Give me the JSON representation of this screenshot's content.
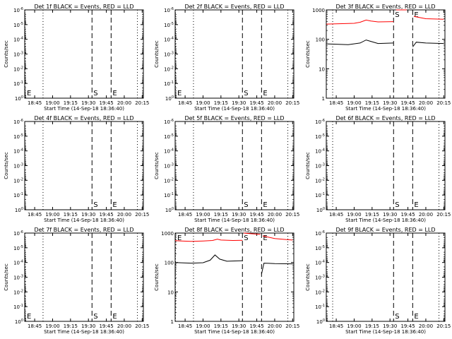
{
  "chart_data": [
    {
      "type": "line",
      "title": "Det 1f BLACK = Events, RED = LLD",
      "ylabel": "Counts/sec",
      "xlabel": "Start Time (14-Sep-18 18:36:40)",
      "xticks": [
        "18:45",
        "19:00",
        "19:15",
        "19:30",
        "19:45",
        "20:00",
        "20:15"
      ],
      "ylog": true,
      "ylim": [
        1,
        1e-06
      ],
      "yticks": [
        {
          "v": 1e-06,
          "label": "10^-6"
        },
        {
          "v": 1e-05,
          "label": "10^-5"
        },
        {
          "v": 0.0001,
          "label": "10^-4"
        },
        {
          "v": 0.001,
          "label": "10^-3"
        },
        {
          "v": 0.01,
          "label": "10^-2"
        },
        {
          "v": 0.1,
          "label": "10^-1"
        },
        {
          "v": 1,
          "label": "10^0"
        }
      ],
      "markers": [
        {
          "label": "E",
          "x": "18:36:40",
          "style": "dot"
        },
        {
          "label": "",
          "x": "18:52",
          "style": "dot"
        },
        {
          "label": "S",
          "x": "19:33",
          "style": "dash"
        },
        {
          "label": "E",
          "x": "19:49",
          "style": "dash"
        },
        {
          "label": "",
          "x": "20:11",
          "style": "dot"
        }
      ],
      "series": []
    },
    {
      "type": "line",
      "title": "Det 2f BLACK = Events, RED = LLD",
      "ylabel": "Counts/sec",
      "xlabel": "Start Time (14-Sep-18 18:36:40)",
      "xticks": [
        "18:45",
        "19:00",
        "19:15",
        "19:30",
        "19:45",
        "20:00",
        "20:15"
      ],
      "ylog": true,
      "ylim": [
        1,
        1e-06
      ],
      "yticks": [
        {
          "v": 1e-06,
          "label": "10^-6"
        },
        {
          "v": 1e-05,
          "label": "10^-5"
        },
        {
          "v": 0.0001,
          "label": "10^-4"
        },
        {
          "v": 0.001,
          "label": "10^-3"
        },
        {
          "v": 0.01,
          "label": "10^-2"
        },
        {
          "v": 0.1,
          "label": "10^-1"
        },
        {
          "v": 1,
          "label": "10^0"
        }
      ],
      "markers": [
        {
          "label": "E",
          "x": "18:36:40",
          "style": "dot"
        },
        {
          "label": "",
          "x": "18:52",
          "style": "dot"
        },
        {
          "label": "S",
          "x": "19:33",
          "style": "dash"
        },
        {
          "label": "E",
          "x": "19:49",
          "style": "dash"
        },
        {
          "label": "",
          "x": "20:11",
          "style": "dot"
        }
      ],
      "series": []
    },
    {
      "type": "line",
      "title": "Det 3f BLACK = Events, RED = LLD",
      "ylabel": "Counts/sec",
      "xlabel": "Start Time (14-Sep-18 18:36:40)",
      "xticks": [
        "18:45",
        "19:00",
        "19:15",
        "19:30",
        "19:45",
        "20:00",
        "20:15"
      ],
      "ylog": true,
      "ylim": [
        1,
        1000
      ],
      "yticks": [
        {
          "v": 1,
          "label": "1"
        },
        {
          "v": 10,
          "label": "10"
        },
        {
          "v": 100,
          "label": "100"
        },
        {
          "v": 1000,
          "label": "1000"
        }
      ],
      "markers": [
        {
          "label": "",
          "x": "18:42",
          "style": "dot"
        },
        {
          "label": "S",
          "x": "19:33",
          "style": "dash"
        },
        {
          "label": "E",
          "x": "19:49",
          "style": "dash"
        },
        {
          "label": "",
          "x": "20:11",
          "style": "dot"
        }
      ],
      "series": [
        {
          "name": "RED",
          "color": "#ff0000",
          "segments": [
            [
              [
                "18:36:40",
                330
              ],
              [
                "18:50",
                340
              ],
              [
                "19:00",
                350
              ],
              [
                "19:05",
                380
              ],
              [
                "19:10",
                450
              ],
              [
                "19:14",
                420
              ],
              [
                "19:20",
                390
              ],
              [
                "19:33",
                400
              ]
            ],
            [
              [
                "19:35",
                1050
              ],
              [
                "19:44",
                1000
              ]
            ],
            [
              "__gap__"
            ],
            [
              [
                "19:50",
                600
              ],
              [
                "20:00",
                500
              ],
              [
                "20:15",
                480
              ]
            ]
          ]
        },
        {
          "name": "BLACK",
          "color": "#000000",
          "segments": [
            [
              [
                "18:36:40",
                70
              ],
              [
                "18:45",
                68
              ],
              [
                "18:55",
                66
              ],
              [
                "19:05",
                75
              ],
              [
                "19:10",
                95
              ],
              [
                "19:14",
                85
              ],
              [
                "19:20",
                72
              ],
              [
                "19:33",
                75
              ]
            ],
            [
              [
                "19:49",
                55
              ],
              [
                "19:52",
                80
              ],
              [
                "20:00",
                75
              ],
              [
                "20:15",
                72
              ]
            ]
          ]
        }
      ]
    },
    {
      "type": "line",
      "title": "Det 4f BLACK = Events, RED = LLD",
      "ylabel": "Counts/sec",
      "xlabel": "Start Time (14-Sep-18 18:36:40)",
      "xticks": [
        "18:45",
        "19:00",
        "19:15",
        "19:30",
        "19:45",
        "20:00",
        "20:15"
      ],
      "ylog": true,
      "ylim": [
        1,
        1e-06
      ],
      "yticks": [
        {
          "v": 1e-06,
          "label": "10^-6"
        },
        {
          "v": 1e-05,
          "label": "10^-5"
        },
        {
          "v": 0.0001,
          "label": "10^-4"
        },
        {
          "v": 0.001,
          "label": "10^-3"
        },
        {
          "v": 0.01,
          "label": "10^-2"
        },
        {
          "v": 0.1,
          "label": "10^-1"
        },
        {
          "v": 1,
          "label": "10^0"
        }
      ],
      "markers": [
        {
          "label": "",
          "x": "18:52",
          "style": "dot"
        },
        {
          "label": "S",
          "x": "19:33",
          "style": "dash"
        },
        {
          "label": "E",
          "x": "19:49",
          "style": "dash"
        },
        {
          "label": "",
          "x": "20:11",
          "style": "dot"
        }
      ],
      "series": []
    },
    {
      "type": "line",
      "title": "Det 5f BLACK = Events, RED = LLD",
      "ylabel": "Counts/sec",
      "xlabel": "Start Time (14-Sep-18 18:36:40)",
      "xticks": [
        "18:45",
        "19:00",
        "19:15",
        "19:30",
        "19:45",
        "20:00",
        "20:15"
      ],
      "ylog": true,
      "ylim": [
        1,
        1e-06
      ],
      "yticks": [
        {
          "v": 1e-06,
          "label": "10^-6"
        },
        {
          "v": 1e-05,
          "label": "10^-5"
        },
        {
          "v": 0.0001,
          "label": "10^-4"
        },
        {
          "v": 0.001,
          "label": "10^-3"
        },
        {
          "v": 0.01,
          "label": "10^-2"
        },
        {
          "v": 0.1,
          "label": "10^-1"
        },
        {
          "v": 1,
          "label": "10^0"
        }
      ],
      "markers": [
        {
          "label": "",
          "x": "18:52",
          "style": "dot"
        },
        {
          "label": "S",
          "x": "19:33",
          "style": "dash"
        },
        {
          "label": "E",
          "x": "19:49",
          "style": "dash"
        },
        {
          "label": "",
          "x": "20:11",
          "style": "dot"
        }
      ],
      "series": []
    },
    {
      "type": "line",
      "title": "Det 6f BLACK = Events, RED = LLD",
      "ylabel": "Counts/sec",
      "xlabel": "Start Time (14-Sep-18 18:36:40)",
      "xticks": [
        "18:45",
        "19:00",
        "19:15",
        "19:30",
        "19:45",
        "20:00",
        "20:15"
      ],
      "ylog": true,
      "ylim": [
        1,
        1e-06
      ],
      "yticks": [
        {
          "v": 1e-06,
          "label": "10^-6"
        },
        {
          "v": 1e-05,
          "label": "10^-5"
        },
        {
          "v": 0.0001,
          "label": "10^-4"
        },
        {
          "v": 0.001,
          "label": "10^-3"
        },
        {
          "v": 0.01,
          "label": "10^-2"
        },
        {
          "v": 0.1,
          "label": "10^-1"
        },
        {
          "v": 1,
          "label": "10^0"
        }
      ],
      "markers": [
        {
          "label": "",
          "x": "18:42",
          "style": "dot"
        },
        {
          "label": "S",
          "x": "19:33",
          "style": "dash"
        },
        {
          "label": "E",
          "x": "19:49",
          "style": "dash"
        },
        {
          "label": "",
          "x": "20:11",
          "style": "dot"
        }
      ],
      "series": []
    },
    {
      "type": "line",
      "title": "Det 7f BLACK = Events, RED = LLD",
      "ylabel": "Counts/sec",
      "xlabel": "Start Time (14-Sep-18 18:36:40)",
      "xticks": [
        "18:45",
        "19:00",
        "19:15",
        "19:30",
        "19:45",
        "20:00",
        "20:15"
      ],
      "ylog": true,
      "ylim": [
        1,
        1e-06
      ],
      "yticks": [
        {
          "v": 1e-06,
          "label": "10^-6"
        },
        {
          "v": 1e-05,
          "label": "10^-5"
        },
        {
          "v": 0.0001,
          "label": "10^-4"
        },
        {
          "v": 0.001,
          "label": "10^-3"
        },
        {
          "v": 0.01,
          "label": "10^-2"
        },
        {
          "v": 0.1,
          "label": "10^-1"
        },
        {
          "v": 1,
          "label": "10^0"
        }
      ],
      "markers": [
        {
          "label": "E",
          "x": "18:36:40",
          "style": "dot"
        },
        {
          "label": "",
          "x": "18:52",
          "style": "dot"
        },
        {
          "label": "S",
          "x": "19:33",
          "style": "dash"
        },
        {
          "label": "E",
          "x": "19:49",
          "style": "dash"
        },
        {
          "label": "",
          "x": "20:11",
          "style": "dot"
        }
      ],
      "series": []
    },
    {
      "type": "line",
      "title": "Det 8f BLACK = Events, RED = LLD",
      "ylabel": "Counts/sec",
      "xlabel": "Start Time (14-Sep-18 18:36:40)",
      "xticks": [
        "18:45",
        "19:00",
        "19:15",
        "19:30",
        "19:45",
        "20:00",
        "20:15"
      ],
      "ylog": true,
      "ylim": [
        1,
        1000
      ],
      "yticks": [
        {
          "v": 1,
          "label": "1"
        },
        {
          "v": 10,
          "label": "10"
        },
        {
          "v": 100,
          "label": "100"
        },
        {
          "v": 1000,
          "label": "1000"
        }
      ],
      "markers": [
        {
          "label": "E",
          "x": "18:36:40",
          "style": "dot"
        },
        {
          "label": "",
          "x": "18:52",
          "style": "dot"
        },
        {
          "label": "S",
          "x": "19:33",
          "style": "dash"
        },
        {
          "label": "E",
          "x": "19:49",
          "style": "dash"
        },
        {
          "label": "",
          "x": "20:11",
          "style": "dot"
        }
      ],
      "series": [
        {
          "name": "RED",
          "color": "#ff0000",
          "segments": [
            [
              [
                "18:36:40",
                550
              ],
              [
                "18:50",
                520
              ],
              [
                "19:00",
                540
              ],
              [
                "19:08",
                560
              ],
              [
                "19:12",
                620
              ],
              [
                "19:15",
                580
              ],
              [
                "19:25",
                560
              ],
              [
                "19:33",
                570
              ]
            ],
            [
              [
                "19:34",
                1000
              ],
              [
                "19:40",
                950
              ],
              [
                "19:48",
                900
              ]
            ],
            [
              [
                "19:50",
                800
              ],
              [
                "20:00",
                650
              ],
              [
                "20:10",
                600
              ],
              [
                "20:15",
                580
              ]
            ]
          ]
        },
        {
          "name": "BLACK",
          "color": "#000000",
          "segments": [
            [
              [
                "18:36:40",
                100
              ],
              [
                "18:50",
                95
              ],
              [
                "19:00",
                98
              ],
              [
                "19:06",
                120
              ],
              [
                "19:10",
                180
              ],
              [
                "19:14",
                130
              ],
              [
                "19:20",
                110
              ],
              [
                "19:33",
                115
              ]
            ],
            [
              [
                "19:49",
                40
              ],
              [
                "19:51",
                95
              ],
              [
                "20:00",
                92
              ],
              [
                "20:15",
                90
              ]
            ]
          ]
        }
      ]
    },
    {
      "type": "line",
      "title": "Det 9f BLACK = Events, RED = LLD",
      "ylabel": "Counts/sec",
      "xlabel": "Start Time (14-Sep-18 18:36:40)",
      "xticks": [
        "18:45",
        "19:00",
        "19:15",
        "19:30",
        "19:45",
        "20:00",
        "20:15"
      ],
      "ylog": true,
      "ylim": [
        1,
        1e-06
      ],
      "yticks": [
        {
          "v": 1e-06,
          "label": "10^-6"
        },
        {
          "v": 1e-05,
          "label": "10^-5"
        },
        {
          "v": 0.0001,
          "label": "10^-4"
        },
        {
          "v": 0.001,
          "label": "10^-3"
        },
        {
          "v": 0.01,
          "label": "10^-2"
        },
        {
          "v": 0.1,
          "label": "10^-1"
        },
        {
          "v": 1,
          "label": "10^0"
        }
      ],
      "markers": [
        {
          "label": "",
          "x": "18:42",
          "style": "dot"
        },
        {
          "label": "S",
          "x": "19:33",
          "style": "dash"
        },
        {
          "label": "E",
          "x": "19:49",
          "style": "dash"
        },
        {
          "label": "",
          "x": "20:11",
          "style": "dot"
        }
      ],
      "series": []
    }
  ]
}
